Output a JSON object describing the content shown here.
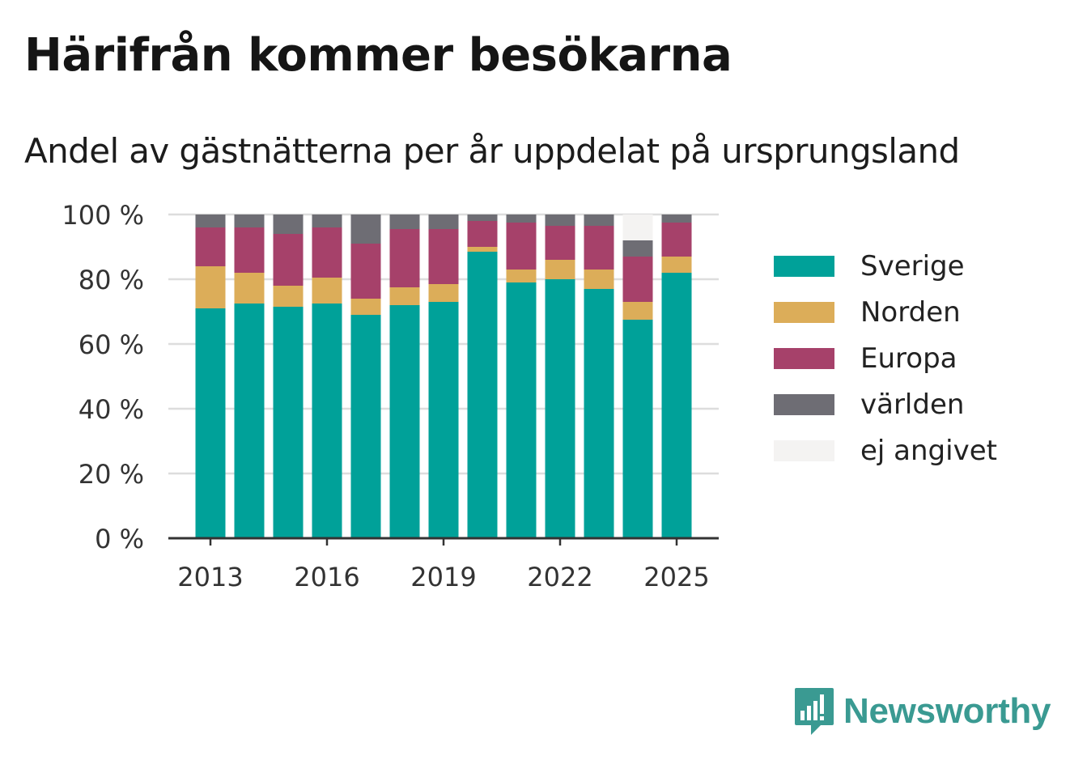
{
  "title": "Härifrån kommer besökarna",
  "subtitle": "Andel av gästnätterna per år uppdelat på ursprungsland",
  "legend": [
    {
      "label": "Sverige",
      "color": "#00a199"
    },
    {
      "label": "Norden",
      "color": "#dcad59"
    },
    {
      "label": "Europa",
      "color": "#a6416a"
    },
    {
      "label": "världen",
      "color": "#6e6d74"
    },
    {
      "label": "ej angivet",
      "color": "#f4f3f2"
    }
  ],
  "brand": {
    "name": "Newsworthy",
    "color": "#3a9a92",
    "icon": "newsworthy-chart-bubble-icon"
  },
  "chart_data": {
    "type": "bar",
    "stacked": true,
    "categories": [
      "2013",
      "2014",
      "2015",
      "2016",
      "2017",
      "2018",
      "2019",
      "2020",
      "2021",
      "2022",
      "2023",
      "2024",
      "2025"
    ],
    "x_tick_labels": [
      "2013",
      "2016",
      "2019",
      "2022",
      "2025"
    ],
    "y_tick_labels": [
      "0 %",
      "20 %",
      "40 %",
      "60 %",
      "80 %",
      "100 %"
    ],
    "ylim": [
      0,
      100
    ],
    "grid": true,
    "legend_position": "right",
    "series": [
      {
        "name": "Sverige",
        "color": "#00a199",
        "values": [
          71,
          72.5,
          71.5,
          72.5,
          69,
          72,
          73,
          88.5,
          79,
          80,
          77,
          67.5,
          82
        ]
      },
      {
        "name": "Norden",
        "color": "#dcad59",
        "values": [
          13,
          9.5,
          6.5,
          8,
          5,
          5.5,
          5.5,
          1.5,
          4,
          6,
          6,
          5.5,
          5
        ]
      },
      {
        "name": "Europa",
        "color": "#a6416a",
        "values": [
          12,
          14,
          16,
          15.5,
          17,
          18,
          17,
          8,
          14.5,
          10.5,
          13.5,
          14,
          10.5
        ]
      },
      {
        "name": "världen",
        "color": "#6e6d74",
        "values": [
          4,
          4,
          6,
          4,
          9,
          4.5,
          4.5,
          2,
          2.5,
          3.5,
          3.5,
          5,
          2.5
        ]
      },
      {
        "name": "ej angivet",
        "color": "#f4f3f2",
        "values": [
          0,
          0,
          0,
          0,
          0,
          0,
          0,
          0,
          0,
          0,
          0,
          8,
          0
        ]
      }
    ]
  }
}
